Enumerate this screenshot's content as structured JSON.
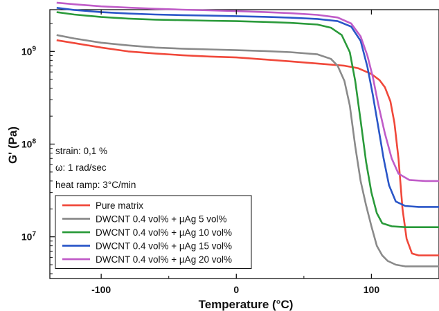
{
  "chart_data": {
    "type": "line",
    "title": "",
    "xlabel": "Temperature (°C)",
    "ylabel": "G' (Pa)",
    "y_scale": "log",
    "xlim": [
      -138,
      150
    ],
    "ylim_log10": [
      6.55,
      9.45
    ],
    "x_ticks": [
      {
        "value": -100,
        "label": "-100"
      },
      {
        "value": 0,
        "label": "0"
      },
      {
        "value": 100,
        "label": "100"
      }
    ],
    "y_ticks": [
      {
        "value": 7,
        "label": "10^7",
        "base": "10",
        "exp": "7"
      },
      {
        "value": 8,
        "label": "10^8",
        "base": "10",
        "exp": "8"
      },
      {
        "value": 9,
        "label": "10^9",
        "base": "10",
        "exp": "9"
      }
    ],
    "annotations": [
      "strain: 0,1 %",
      "ω: 1 rad/sec",
      "heat ramp: 3°C/min"
    ],
    "legend_position": "bottom-left",
    "series": [
      {
        "name": "Pure matrix",
        "color": "#f0483a",
        "points": [
          [
            -133,
            1320000000.0
          ],
          [
            -120,
            1230000000.0
          ],
          [
            -100,
            1100000000.0
          ],
          [
            -80,
            1000000000.0
          ],
          [
            -60,
            950000000.0
          ],
          [
            -40,
            910000000.0
          ],
          [
            -20,
            880000000.0
          ],
          [
            0,
            860000000.0
          ],
          [
            20,
            820000000.0
          ],
          [
            40,
            780000000.0
          ],
          [
            60,
            740000000.0
          ],
          [
            80,
            700000000.0
          ],
          [
            90,
            660000000.0
          ],
          [
            100,
            570000000.0
          ],
          [
            106,
            490000000.0
          ],
          [
            110,
            410000000.0
          ],
          [
            114,
            290000000.0
          ],
          [
            117,
            170000000.0
          ],
          [
            120,
            70000000.0
          ],
          [
            123,
            20000000.0
          ],
          [
            126,
            9500000.0
          ],
          [
            130,
            6600000.0
          ],
          [
            135,
            6300000.0
          ],
          [
            150,
            6300000.0
          ]
        ]
      },
      {
        "name": "DWCNT 0.4 vol% + µAg 5 vol%",
        "color": "#8a8a8a",
        "points": [
          [
            -133,
            1500000000.0
          ],
          [
            -120,
            1380000000.0
          ],
          [
            -100,
            1240000000.0
          ],
          [
            -80,
            1160000000.0
          ],
          [
            -60,
            1100000000.0
          ],
          [
            -40,
            1070000000.0
          ],
          [
            -20,
            1050000000.0
          ],
          [
            0,
            1030000000.0
          ],
          [
            20,
            1010000000.0
          ],
          [
            40,
            980000000.0
          ],
          [
            60,
            930000000.0
          ],
          [
            70,
            830000000.0
          ],
          [
            75,
            700000000.0
          ],
          [
            80,
            480000000.0
          ],
          [
            84,
            260000000.0
          ],
          [
            88,
            95000000.0
          ],
          [
            92,
            40000000.0
          ],
          [
            96,
            22000000.0
          ],
          [
            100,
            13000000.0
          ],
          [
            104,
            8000000.0
          ],
          [
            108,
            6300000.0
          ],
          [
            112,
            5500000.0
          ],
          [
            118,
            5000000.0
          ],
          [
            125,
            4800000.0
          ],
          [
            135,
            4800000.0
          ],
          [
            150,
            4800000.0
          ]
        ]
      },
      {
        "name": "DWCNT 0.4 vol% + µAg 10 vol%",
        "color": "#2a9a3a",
        "points": [
          [
            -133,
            2650000000.0
          ],
          [
            -120,
            2500000000.0
          ],
          [
            -100,
            2350000000.0
          ],
          [
            -80,
            2260000000.0
          ],
          [
            -60,
            2200000000.0
          ],
          [
            -40,
            2170000000.0
          ],
          [
            -20,
            2140000000.0
          ],
          [
            0,
            2120000000.0
          ],
          [
            20,
            2080000000.0
          ],
          [
            40,
            2030000000.0
          ],
          [
            60,
            1950000000.0
          ],
          [
            70,
            1800000000.0
          ],
          [
            78,
            1500000000.0
          ],
          [
            84,
            980000000.0
          ],
          [
            88,
            480000000.0
          ],
          [
            92,
            180000000.0
          ],
          [
            96,
            65000000.0
          ],
          [
            100,
            30000000.0
          ],
          [
            104,
            18000000.0
          ],
          [
            108,
            14000000.0
          ],
          [
            115,
            13000000.0
          ],
          [
            125,
            12700000.0
          ],
          [
            150,
            12700000.0
          ]
        ]
      },
      {
        "name": "DWCNT 0.4 vol% + µAg 15 vol%",
        "color": "#2a56c8",
        "points": [
          [
            -133,
            2950000000.0
          ],
          [
            -120,
            2800000000.0
          ],
          [
            -100,
            2650000000.0
          ],
          [
            -80,
            2560000000.0
          ],
          [
            -60,
            2500000000.0
          ],
          [
            -40,
            2460000000.0
          ],
          [
            -20,
            2430000000.0
          ],
          [
            0,
            2400000000.0
          ],
          [
            20,
            2360000000.0
          ],
          [
            40,
            2310000000.0
          ],
          [
            60,
            2240000000.0
          ],
          [
            75,
            2120000000.0
          ],
          [
            85,
            1850000000.0
          ],
          [
            92,
            1300000000.0
          ],
          [
            97,
            680000000.0
          ],
          [
            101,
            340000000.0
          ],
          [
            105,
            155000000.0
          ],
          [
            109,
            70000000.0
          ],
          [
            113,
            36000000.0
          ],
          [
            118,
            24000000.0
          ],
          [
            125,
            21500000.0
          ],
          [
            135,
            21000000.0
          ],
          [
            150,
            21000000.0
          ]
        ]
      },
      {
        "name": "DWCNT 0.4 vol% + µAg 20 vol%",
        "color": "#c05cc8",
        "points": [
          [
            -133,
            3350000000.0
          ],
          [
            -120,
            3220000000.0
          ],
          [
            -100,
            3060000000.0
          ],
          [
            -80,
            2960000000.0
          ],
          [
            -60,
            2880000000.0
          ],
          [
            -40,
            2820000000.0
          ],
          [
            -20,
            2770000000.0
          ],
          [
            0,
            2720000000.0
          ],
          [
            20,
            2660000000.0
          ],
          [
            40,
            2580000000.0
          ],
          [
            60,
            2480000000.0
          ],
          [
            75,
            2320000000.0
          ],
          [
            85,
            2000000000.0
          ],
          [
            92,
            1450000000.0
          ],
          [
            97,
            900000000.0
          ],
          [
            101,
            530000000.0
          ],
          [
            105,
            270000000.0
          ],
          [
            110,
            130000000.0
          ],
          [
            115,
            70000000.0
          ],
          [
            120,
            48000000.0
          ],
          [
            128,
            41000000.0
          ],
          [
            140,
            40000000.0
          ],
          [
            150,
            40000000.0
          ]
        ]
      }
    ]
  }
}
